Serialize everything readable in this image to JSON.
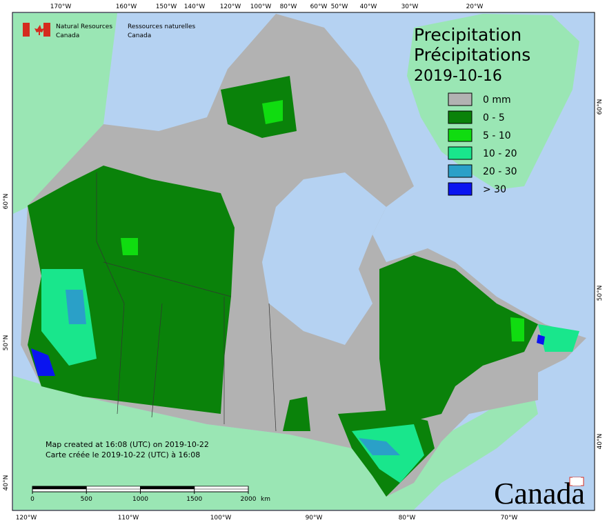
{
  "agency": {
    "en": [
      "Natural Resources",
      "Canada"
    ],
    "fr": [
      "Ressources naturelles",
      "Canada"
    ]
  },
  "title": [
    "Precipitation",
    "Précipitations"
  ],
  "date": "2019-10-16",
  "legend": [
    {
      "label": "0 mm",
      "color": "#b2b2b2"
    },
    {
      "label": "0 - 5",
      "color": "#0a820a"
    },
    {
      "label": "5 - 10",
      "color": "#10dc10"
    },
    {
      "label": "10 - 20",
      "color": "#19e68c"
    },
    {
      "label": "20 - 30",
      "color": "#2aa0c8"
    },
    {
      "label": "> 30",
      "color": "#0a14f0"
    }
  ],
  "top_lon_labels": [
    "170°W",
    "160°W",
    "150°W",
    "140°W",
    "120°W",
    "100°W",
    "80°W",
    "60°W",
    "50°W",
    "40°W",
    "30°W",
    "20°W"
  ],
  "bottom_lon_labels": [
    "120°W",
    "110°W",
    "100°W",
    "90°W",
    "80°W",
    "70°W"
  ],
  "left_lat_labels": [
    "60°N",
    "50°N",
    "40°N"
  ],
  "right_lat_labels": [
    "60°N",
    "50°N",
    "40°N"
  ],
  "scale_bar": {
    "ticks": [
      0,
      500,
      1000,
      1500,
      2000
    ],
    "unit": "km"
  },
  "credit": [
    "Map created at 16:08 (UTC) on 2019-10-22",
    "Carte créée le 2019-10-22 (UTC) à 16:08"
  ],
  "wordmark": "Canada"
}
